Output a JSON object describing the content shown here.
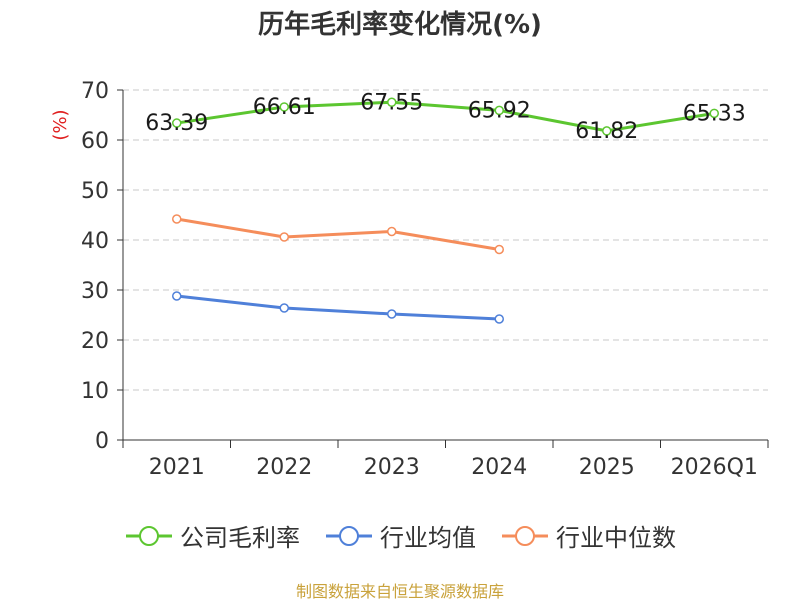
{
  "title": "历年毛利率变化情况(%)",
  "source": "制图数据来自恒生聚源数据库",
  "chart_data": {
    "type": "line",
    "title": "历年毛利率变化情况(%)",
    "ylabel": "(%)",
    "xlabel": "",
    "ylim": [
      0,
      70
    ],
    "yticks": [
      0,
      10,
      20,
      30,
      40,
      50,
      60,
      70
    ],
    "categories": [
      "2021",
      "2022",
      "2023",
      "2024",
      "2025",
      "2026Q1"
    ],
    "grid": true,
    "legend_position": "bottom",
    "series": [
      {
        "name": "公司毛利率",
        "color": "#5cc630",
        "values": [
          63.39,
          66.61,
          67.55,
          65.92,
          61.82,
          65.33
        ],
        "labels": [
          "63.39",
          "66.61",
          "67.55",
          "65.92",
          "61.82",
          "65.33"
        ]
      },
      {
        "name": "行业均值",
        "color": "#4f80d9",
        "values": [
          28.8,
          26.4,
          25.2,
          24.2,
          null,
          null
        ]
      },
      {
        "name": "行业中位数",
        "color": "#f58d5b",
        "values": [
          44.2,
          40.6,
          41.7,
          38.1,
          null,
          null
        ]
      }
    ]
  }
}
